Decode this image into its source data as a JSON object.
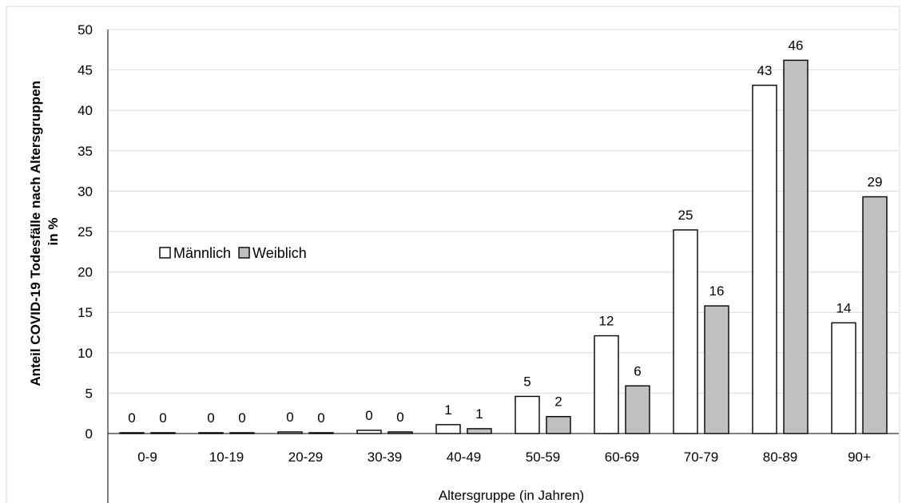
{
  "chart_data": {
    "type": "bar",
    "title": "",
    "xlabel": "Altersgruppe (in Jahren)",
    "ylabel_line1": "Anteil COVID-19 Todesfälle nach Altersgruppen",
    "ylabel_line2": "in %",
    "ylim": [
      0,
      50
    ],
    "yticks": [
      "0",
      "5",
      "10",
      "15",
      "20",
      "25",
      "30",
      "35",
      "40",
      "45",
      "50"
    ],
    "grid": true,
    "legend_position": "center-left",
    "categories": [
      "0-9",
      "10-19",
      "20-29",
      "30-39",
      "40-49",
      "50-59",
      "60-69",
      "70-79",
      "80-89",
      "90+"
    ],
    "series": [
      {
        "name": "Männlich",
        "color": "#ffffff",
        "values": [
          0.1,
          0.1,
          0.2,
          0.4,
          1.1,
          4.6,
          12.1,
          25.2,
          43.1,
          13.7
        ],
        "labels": [
          "0",
          "0",
          "0",
          "0",
          "1",
          "5",
          "12",
          "25",
          "43",
          "14"
        ]
      },
      {
        "name": "Weiblich",
        "color": "#c0c0c0",
        "values": [
          0.1,
          0.1,
          0.1,
          0.2,
          0.6,
          2.1,
          5.9,
          15.8,
          46.2,
          29.3
        ],
        "labels": [
          "0",
          "0",
          "0",
          "0",
          "1",
          "2",
          "6",
          "16",
          "46",
          "29"
        ]
      }
    ]
  }
}
